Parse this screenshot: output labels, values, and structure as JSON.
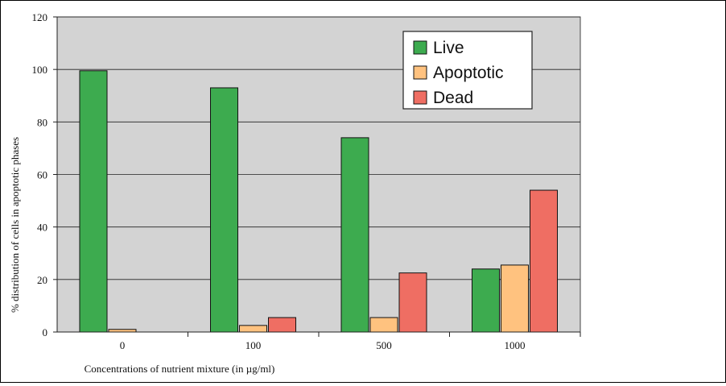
{
  "chart_data": {
    "type": "bar",
    "categories": [
      "0",
      "100",
      "500",
      "1000"
    ],
    "series": [
      {
        "name": "Live",
        "values": [
          99.5,
          93,
          74,
          24
        ],
        "color": "#3dab4f"
      },
      {
        "name": "Apoptotic",
        "values": [
          1,
          2.5,
          5.5,
          25.5
        ],
        "color": "#ffc27f"
      },
      {
        "name": "Dead",
        "values": [
          0,
          5.5,
          22.5,
          54
        ],
        "color": "#ef6e63"
      }
    ],
    "title": "",
    "xlabel": "Concentrations of nutrient mixture (in µg/ml)",
    "ylabel": "% distribution of cells in apoptotic phases",
    "ylim": [
      0,
      120
    ],
    "yticks": [
      0,
      20,
      40,
      60,
      80,
      100,
      120
    ],
    "grid": true,
    "legend_position": "top-right",
    "plot_background": "#d3d3d3"
  }
}
